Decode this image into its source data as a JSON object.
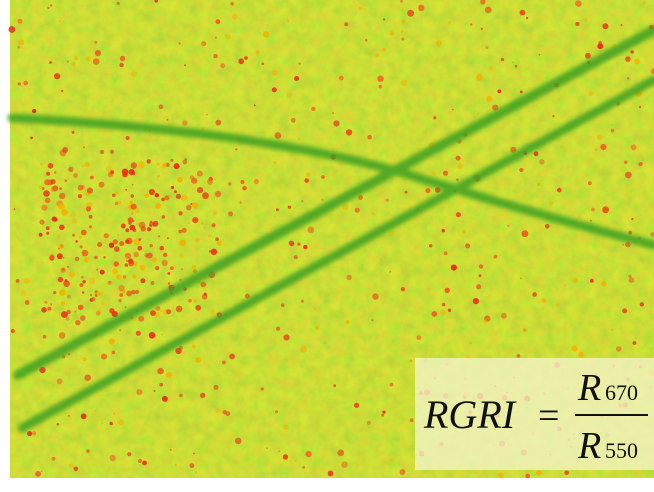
{
  "formula": {
    "lhs": "RGRI",
    "equals": "=",
    "numerator": {
      "symbol": "R",
      "subscript": "670"
    },
    "denominator": {
      "symbol": "R",
      "subscript": "550"
    }
  }
}
